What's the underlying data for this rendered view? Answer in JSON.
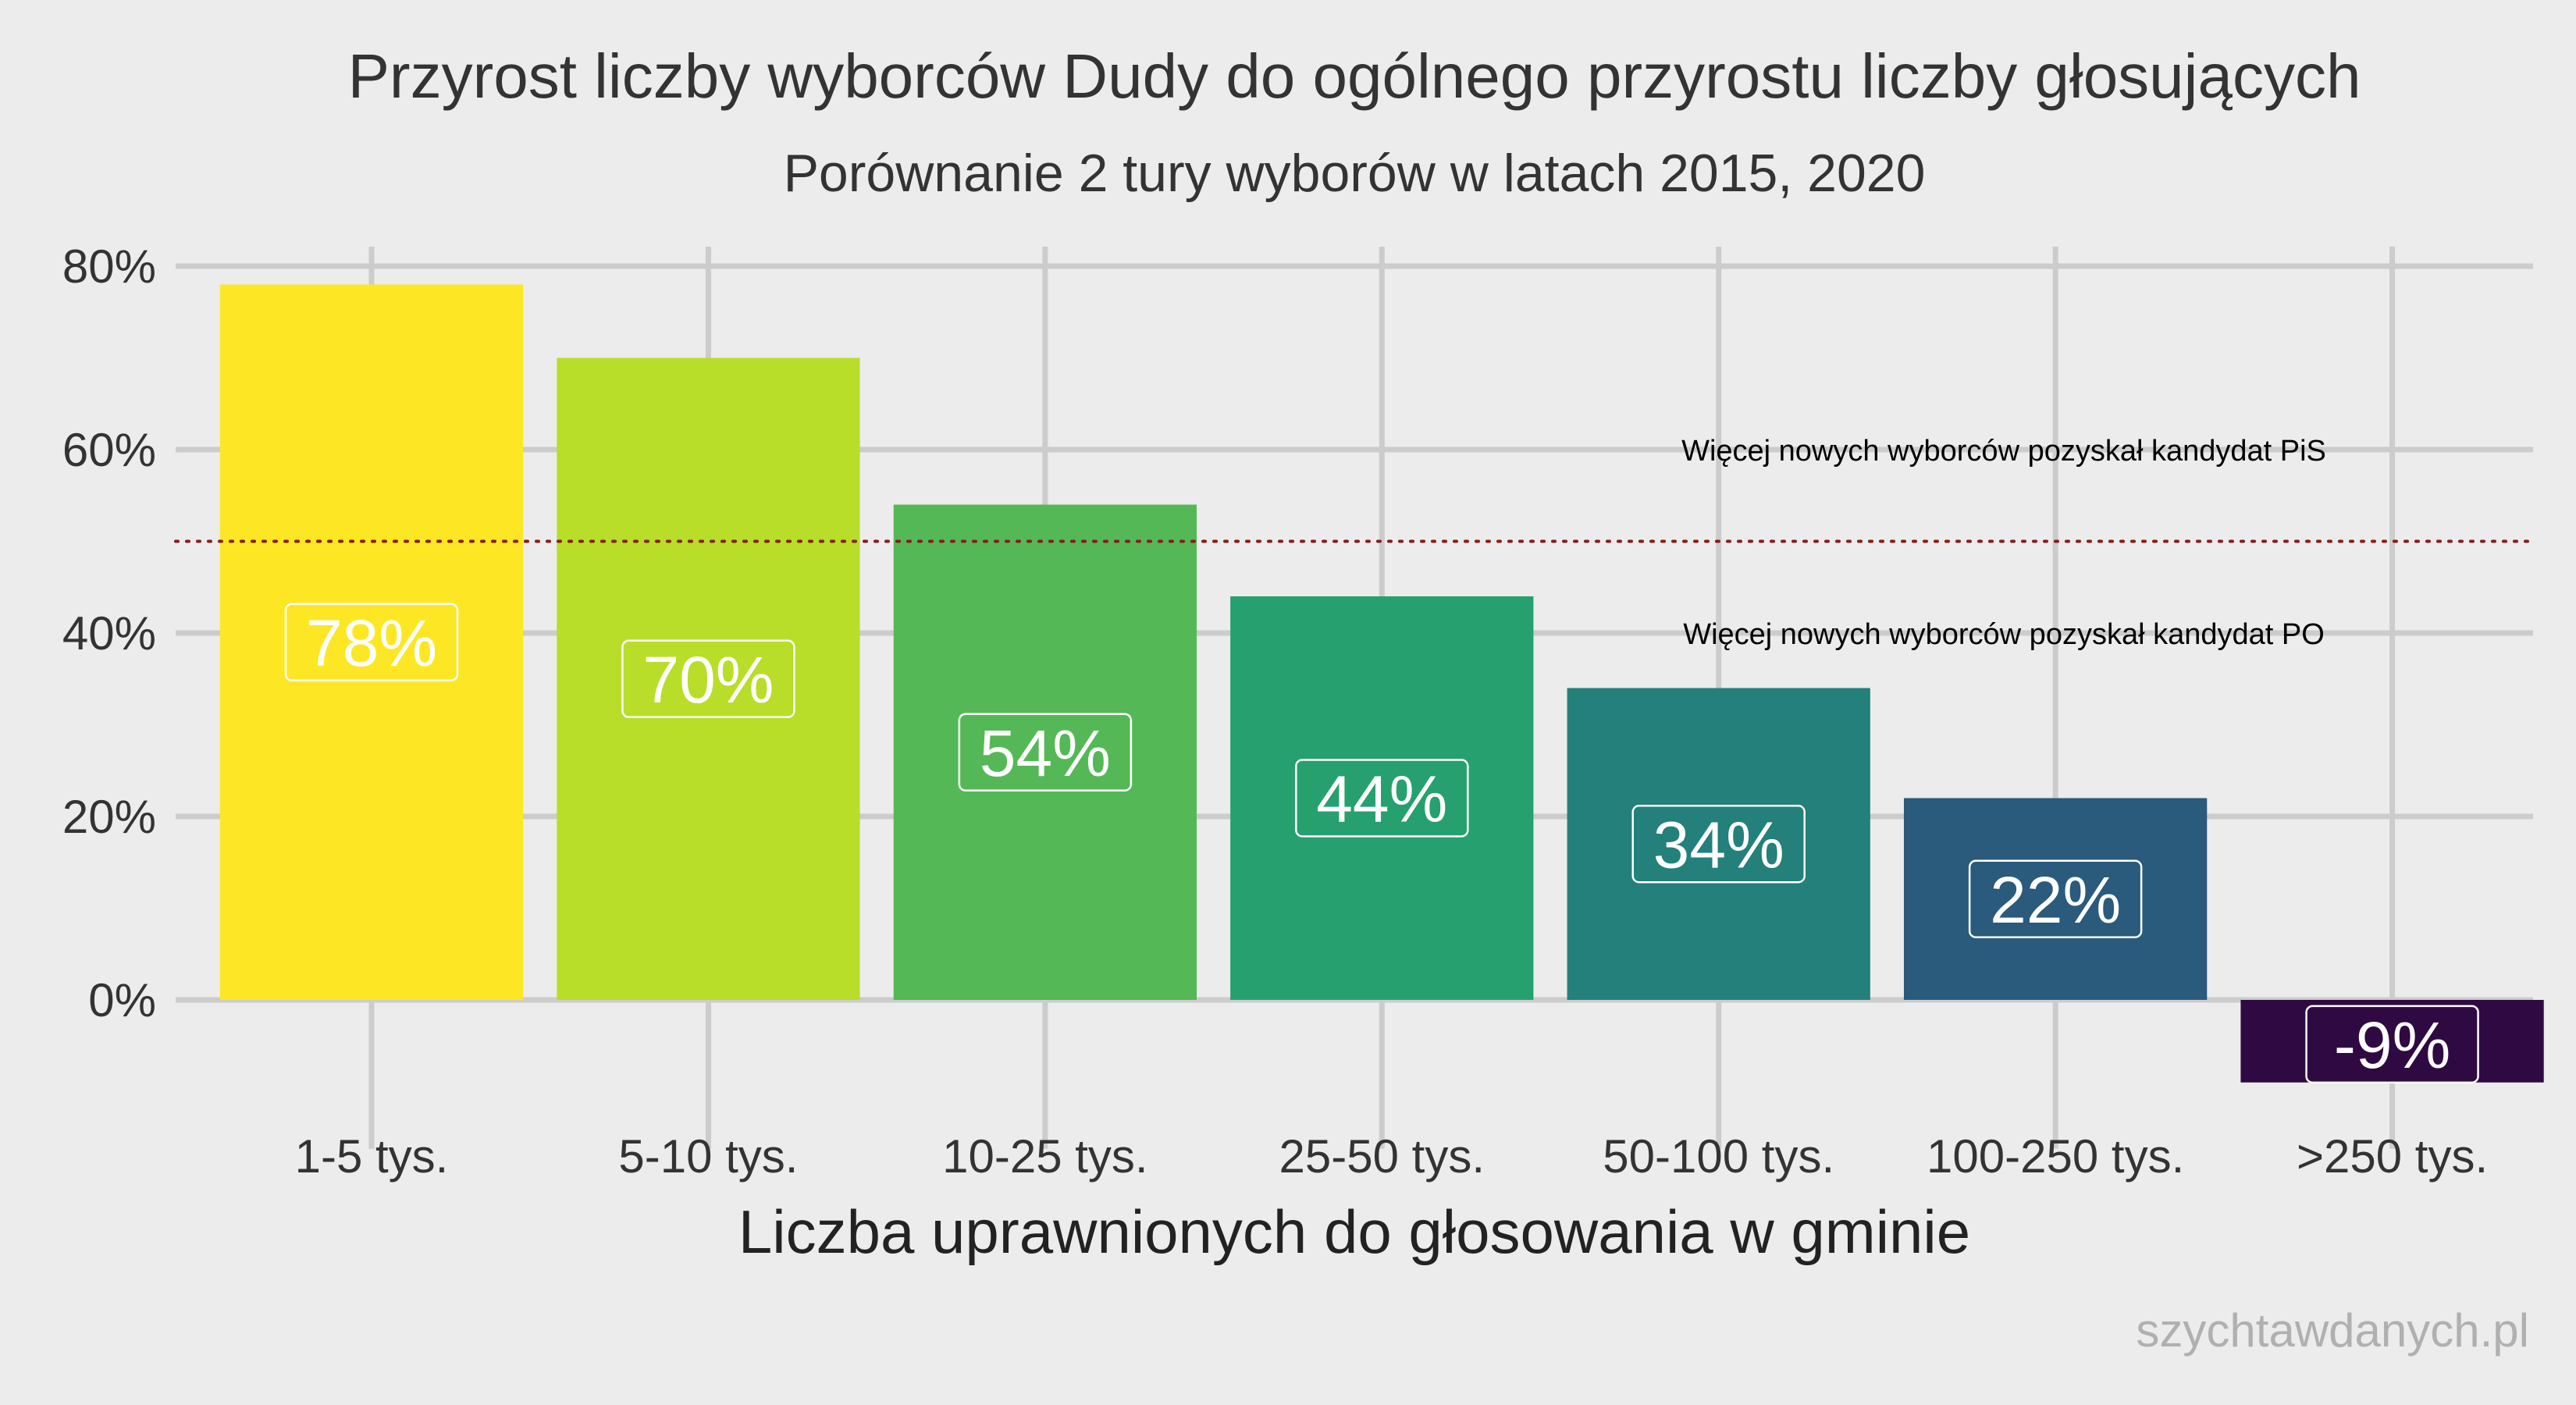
{
  "chart_data": {
    "type": "bar",
    "title": "Przyrost liczby wyborców Dudy do ogólnego przyrostu liczby głosujących",
    "subtitle": "Porównanie 2 tury wyborów w latach 2015, 2020",
    "xlabel": "Liczba uprawnionych do głosowania w gminie",
    "ylabel": "",
    "categories": [
      "1-5 tys.",
      "5-10 tys.",
      "10-25 tys.",
      "25-50 tys.",
      "50-100 tys.",
      "100-250 tys.",
      ">250 tys."
    ],
    "values": [
      78,
      70,
      54,
      44,
      34,
      22,
      -9
    ],
    "value_labels": [
      "78%",
      "70%",
      "54%",
      "44%",
      "34%",
      "22%",
      "-9%"
    ],
    "colors": [
      "#fde725",
      "#b8de29",
      "#55b856",
      "#26a06f",
      "#23807a",
      "#2a5a7c",
      "#2f0a42"
    ],
    "ylim": [
      -9,
      80
    ],
    "yticks": [
      0,
      20,
      40,
      60,
      80
    ],
    "ytick_labels": [
      "0%",
      "20%",
      "40%",
      "60%",
      "80%"
    ],
    "grid": true,
    "reference_line": {
      "value": 50,
      "color": "#8b1a1a",
      "style": "dotted"
    },
    "annotations": [
      {
        "text": "Więcej nowych wyborców pozyskał kandydat PiS",
        "y": 60
      },
      {
        "text": "Więcej nowych wyborców pozyskał kandydat PO",
        "y": 40
      }
    ],
    "caption": "szychtawdanych.pl"
  }
}
